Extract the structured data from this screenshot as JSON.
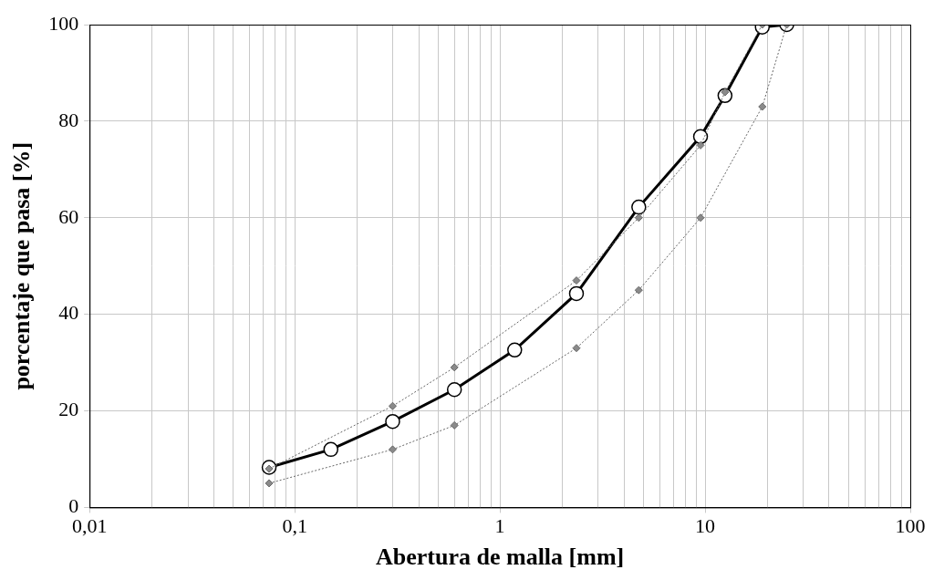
{
  "chart_data": {
    "type": "line",
    "x_label": "Abertura de malla [mm]",
    "y_label": "porcentaje que pasa [%]",
    "log": "x",
    "grid": true,
    "xlim": [
      0.01,
      100
    ],
    "xticks": [
      {
        "value": 0.01,
        "label": "0,01"
      },
      {
        "value": 0.1,
        "label": "0,1"
      },
      1,
      10,
      100
    ],
    "ylim": [
      0,
      100
    ],
    "yticks": [
      0,
      20,
      40,
      60,
      80,
      100
    ],
    "series": [
      {
        "color": "#000000",
        "marker": "circle",
        "line_style": "solid",
        "x": [
          0.075,
          0.15,
          0.3,
          0.6,
          1.18,
          2.36,
          4.75,
          9.5,
          12.5,
          19,
          25
        ],
        "values": [
          8.3,
          12,
          17.8,
          24.4,
          32.6,
          44.3,
          62.2,
          76.8,
          85.3,
          99.5,
          100
        ]
      },
      {
        "color": "#666666",
        "marker": "diamond",
        "line_style": "dotted",
        "x": [
          0.075,
          0.3,
          0.6,
          2.36,
          4.75,
          9.5,
          12.5,
          19
        ],
        "values": [
          8,
          21,
          29,
          47,
          60,
          75,
          86,
          100
        ]
      },
      {
        "color": "#666666",
        "marker": "diamond",
        "line_style": "dotted",
        "x": [
          0.075,
          0.3,
          0.6,
          2.36,
          4.75,
          9.5,
          19,
          25
        ],
        "values": [
          5,
          12,
          17,
          33,
          45,
          60,
          83,
          100
        ]
      }
    ]
  }
}
